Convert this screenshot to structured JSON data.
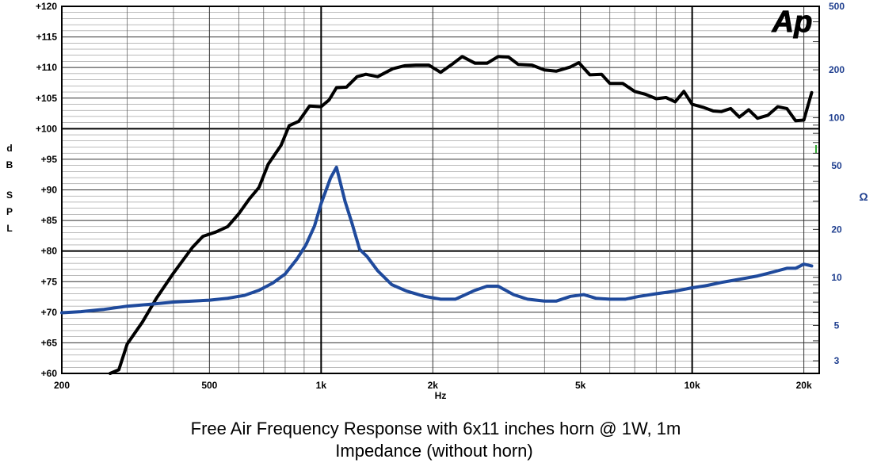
{
  "chart_data": {
    "type": "line",
    "title": "Free Air Frequency Response with 6x11 inches horn @ 1W, 1m",
    "subtitle": "Impedance (without horn)",
    "xlabel": "Hz",
    "ylabel_left": [
      "d",
      "B",
      "S",
      "P",
      "L"
    ],
    "ylabel_right": "Ω",
    "logo_text": "Ap",
    "xscale": "log",
    "xlim": [
      200,
      22000
    ],
    "ylim": [
      60,
      120
    ],
    "y2lim": [
      2.5,
      500
    ],
    "x_ticks": [
      {
        "value": 200,
        "label": "200"
      },
      {
        "value": 500,
        "label": "500"
      },
      {
        "value": 1000,
        "label": "1k"
      },
      {
        "value": 2000,
        "label": "2k"
      },
      {
        "value": 5000,
        "label": "5k"
      },
      {
        "value": 10000,
        "label": "10k"
      },
      {
        "value": 20000,
        "label": "20k"
      }
    ],
    "y_ticks": [
      {
        "value": 60,
        "label": "+60"
      },
      {
        "value": 65,
        "label": "+65"
      },
      {
        "value": 70,
        "label": "+70"
      },
      {
        "value": 75,
        "label": "+75"
      },
      {
        "value": 80,
        "label": "+80"
      },
      {
        "value": 85,
        "label": "+85"
      },
      {
        "value": 90,
        "label": "+90"
      },
      {
        "value": 95,
        "label": "+95"
      },
      {
        "value": 100,
        "label": "+100"
      },
      {
        "value": 105,
        "label": "+105"
      },
      {
        "value": 110,
        "label": "+110"
      },
      {
        "value": 115,
        "label": "+115"
      },
      {
        "value": 120,
        "label": "+120"
      }
    ],
    "y2_ticks": [
      {
        "value": 3,
        "label": "3"
      },
      {
        "value": 5,
        "label": "5"
      },
      {
        "value": 10,
        "label": "10"
      },
      {
        "value": 20,
        "label": "20"
      },
      {
        "value": 50,
        "label": "50"
      },
      {
        "value": 100,
        "label": "100"
      },
      {
        "value": 200,
        "label": "200"
      },
      {
        "value": 500,
        "label": "500"
      }
    ],
    "series": [
      {
        "name": "SPL (dB)",
        "axis": "left",
        "color": "#000000",
        "x": [
          270,
          285,
          300,
          330,
          360,
          400,
          450,
          480,
          520,
          560,
          600,
          640,
          680,
          720,
          780,
          820,
          870,
          930,
          1000,
          1050,
          1100,
          1170,
          1250,
          1320,
          1420,
          1560,
          1680,
          1800,
          1950,
          2100,
          2250,
          2400,
          2600,
          2800,
          3000,
          3200,
          3400,
          3700,
          4000,
          4300,
          4700,
          4950,
          5300,
          5700,
          6000,
          6500,
          7000,
          7500,
          8000,
          8500,
          9000,
          9500,
          10000,
          10700,
          11400,
          12000,
          12700,
          13400,
          14200,
          15000,
          16000,
          17000,
          18000,
          19000,
          20000,
          21000
        ],
        "y": [
          60,
          60.6,
          64.8,
          68.4,
          72.3,
          76.4,
          80.6,
          82.4,
          83.1,
          84,
          86.1,
          88.5,
          90.4,
          94.2,
          97.3,
          100.5,
          101.2,
          103.7,
          103.6,
          104.7,
          106.7,
          106.8,
          108.5,
          108.9,
          108.5,
          109.8,
          110.3,
          110.4,
          110.4,
          109.2,
          110.5,
          111.8,
          110.7,
          110.7,
          111.8,
          111.7,
          110.5,
          110.4,
          109.6,
          109.4,
          110.1,
          110.8,
          108.8,
          108.9,
          107.4,
          107.4,
          106.1,
          105.6,
          104.9,
          105.1,
          104.4,
          106.1,
          104,
          103.5,
          102.9,
          102.8,
          103.3,
          101.9,
          103.1,
          101.7,
          102.2,
          103.6,
          103.3,
          101.3,
          101.4,
          105.9
        ]
      },
      {
        "name": "Impedance (Ω)",
        "axis": "right",
        "color": "#1f4a9c",
        "x": [
          200,
          225,
          260,
          300,
          350,
          400,
          450,
          500,
          560,
          620,
          680,
          740,
          800,
          860,
          910,
          960,
          1000,
          1060,
          1100,
          1160,
          1210,
          1270,
          1330,
          1420,
          1550,
          1700,
          1900,
          2100,
          2300,
          2600,
          2800,
          3000,
          3300,
          3600,
          4000,
          4300,
          4700,
          5100,
          5500,
          6000,
          6600,
          7200,
          8000,
          9000,
          10000,
          11000,
          12000,
          13000,
          14000,
          15000,
          16000,
          17000,
          18000,
          19000,
          20000,
          21000
        ],
        "y": [
          6.0,
          6.1,
          6.3,
          6.6,
          6.8,
          7.0,
          7.1,
          7.2,
          7.4,
          7.7,
          8.3,
          9.2,
          10.5,
          13,
          16,
          21,
          29,
          42,
          49,
          30,
          22,
          15,
          13.5,
          11,
          9,
          8.2,
          7.6,
          7.3,
          7.3,
          8.3,
          8.8,
          8.8,
          7.8,
          7.3,
          7.1,
          7.1,
          7.6,
          7.8,
          7.4,
          7.3,
          7.3,
          7.6,
          7.9,
          8.2,
          8.6,
          8.9,
          9.3,
          9.6,
          9.9,
          10.2,
          10.6,
          11.0,
          11.4,
          11.4,
          12.1,
          11.8
        ]
      }
    ]
  }
}
